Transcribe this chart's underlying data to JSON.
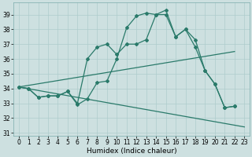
{
  "background_color": "#cde0e0",
  "grid_color": "#aecccc",
  "line_color": "#2a7a6a",
  "xlabel": "Humidex (Indice chaleur)",
  "xlim": [
    -0.5,
    23.5
  ],
  "ylim": [
    30.8,
    39.8
  ],
  "yticks": [
    31,
    32,
    33,
    34,
    35,
    36,
    37,
    38,
    39
  ],
  "xticks": [
    0,
    1,
    2,
    3,
    4,
    5,
    6,
    7,
    8,
    9,
    10,
    11,
    12,
    13,
    14,
    15,
    16,
    17,
    18,
    19,
    20,
    21,
    22,
    23
  ],
  "line1_x": [
    0,
    1,
    2,
    3,
    4,
    5,
    6,
    7,
    8,
    9,
    10,
    11,
    12,
    13,
    14,
    15,
    16,
    17,
    18,
    19,
    20,
    21,
    22
  ],
  "line1_y": [
    34.1,
    34.0,
    33.4,
    33.5,
    33.5,
    33.8,
    32.9,
    33.3,
    34.4,
    34.5,
    36.0,
    38.1,
    38.9,
    39.1,
    39.0,
    39.3,
    37.5,
    38.0,
    37.3,
    35.2,
    34.3,
    32.7,
    32.8
  ],
  "line2_x": [
    0,
    1,
    2,
    3,
    4,
    5,
    6,
    7,
    8,
    9,
    10,
    11,
    12,
    13,
    14,
    15,
    16,
    17,
    18,
    19,
    20,
    21,
    22
  ],
  "line2_y": [
    34.1,
    34.0,
    33.4,
    33.5,
    33.5,
    33.8,
    33.0,
    36.0,
    36.8,
    37.0,
    36.3,
    37.0,
    37.0,
    37.3,
    39.0,
    39.0,
    37.5,
    38.0,
    36.8,
    35.2,
    34.3,
    32.7,
    32.8
  ],
  "line3_x": [
    0,
    22
  ],
  "line3_y": [
    34.1,
    36.5
  ],
  "line4_x": [
    0,
    23
  ],
  "line4_y": [
    34.1,
    31.4
  ],
  "marker": "D",
  "markersize": 2.0,
  "linewidth": 0.9,
  "tick_fontsize": 5.5,
  "xlabel_fontsize": 6.5
}
